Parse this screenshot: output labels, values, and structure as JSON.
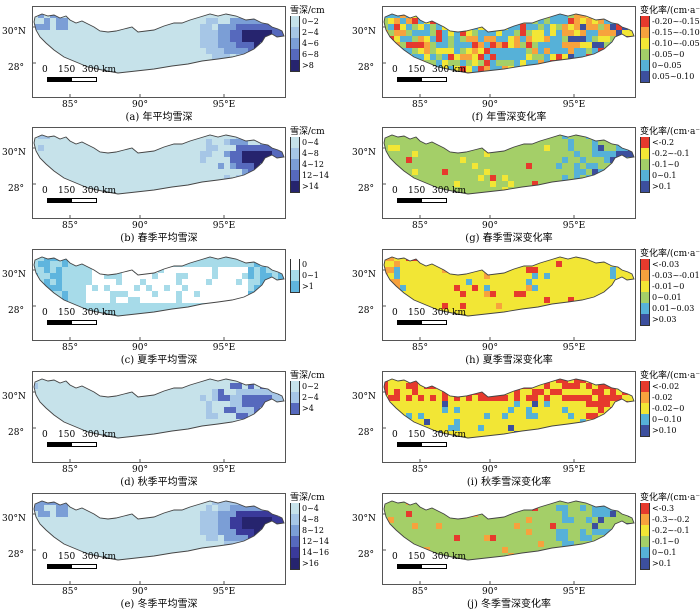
{
  "axes": {
    "lat_labels": [
      "30°N",
      "28°"
    ],
    "lon_labels": [
      "85°",
      "90°",
      "95°E"
    ]
  },
  "scale": {
    "ticks": [
      "0",
      "150",
      "300 km"
    ]
  },
  "colors": {
    "outline": "#444444",
    "depth": [
      "#c6e2ea",
      "#a6c6e6",
      "#7b9ed6",
      "#5669bd",
      "#3a3a9a",
      "#26246e"
    ],
    "summer": [
      "#ffffff",
      "#a7dbe9",
      "#5fb5de"
    ],
    "rate": [
      "#e63a2d",
      "#f7a23d",
      "#f2e635",
      "#a4cf68",
      "#56b1d8",
      "#3c4f9e"
    ]
  },
  "panels": [
    {
      "caption": "(a) 年平均雪深",
      "legend_title": "雪深/cm",
      "legend": [
        "0~2",
        "2~4",
        "4~6",
        "6~8",
        ">8"
      ],
      "colors": [
        "#c6e2ea",
        "#a6c6e6",
        "#7b9ed6",
        "#5669bd",
        "#26246e"
      ],
      "pattern": "depth_east",
      "base": "#c6e2ea"
    },
    {
      "caption": "(f) 年雪深变化率",
      "legend_title": "变化率/(cm·a⁻¹)",
      "legend": [
        "-0.20~-0.15",
        "-0.15~-0.10",
        "-0.10~-0.05",
        "-0.05~0",
        "0~0.05",
        "0.05~0.10"
      ],
      "colors": [
        "#e63a2d",
        "#f7a23d",
        "#f2e635",
        "#a4cf68",
        "#56b1d8",
        "#3c4f9e"
      ],
      "pattern": "rate_mixed",
      "base": "#56b1d8"
    },
    {
      "caption": "(b) 春季平均雪深",
      "legend_title": "雪深/cm",
      "legend": [
        "0~4",
        "4~8",
        "4~12",
        "12~14",
        ">14"
      ],
      "colors": [
        "#c6e2ea",
        "#a6c6e6",
        "#7b9ed6",
        "#5669bd",
        "#26246e"
      ],
      "pattern": "depth_east_light",
      "base": "#c6e2ea"
    },
    {
      "caption": "(g) 春季雪深变化率",
      "legend_title": "变化率/(cm·a⁻¹)",
      "legend": [
        "<-0.2",
        "-0.2~-0.1",
        "-0.1~0",
        "0~0.1",
        ">0.1"
      ],
      "colors": [
        "#e63a2d",
        "#f2e635",
        "#a4cf68",
        "#56b1d8",
        "#3c4f9e"
      ],
      "pattern": "rate_green",
      "base": "#a4cf68"
    },
    {
      "caption": "(c) 夏季平均雪深",
      "legend_title": "",
      "legend": [
        "0",
        "0~1",
        ">1"
      ],
      "colors": [
        "#ffffff",
        "#a7dbe9",
        "#5fb5de"
      ],
      "pattern": "summer",
      "base": "#a7dbe9"
    },
    {
      "caption": "(h) 夏季雪深变化率",
      "legend_title": "变化率/(cm·a⁻¹)",
      "legend": [
        "<-0.03",
        "-0.03~-0.01",
        "-0.01~0",
        "0~0.01",
        "0.01~0.03",
        ">0.03"
      ],
      "colors": [
        "#e63a2d",
        "#f7a23d",
        "#f2e635",
        "#a4cf68",
        "#56b1d8",
        "#3c4f9e"
      ],
      "pattern": "rate_yellow",
      "base": "#f2e635"
    },
    {
      "caption": "(d) 秋季平均雪深",
      "legend_title": "雪深/cm",
      "legend": [
        "0~2",
        "2~4",
        ">4"
      ],
      "colors": [
        "#c6e2ea",
        "#a6c6e6",
        "#5669bd"
      ],
      "pattern": "depth_east_light",
      "base": "#c6e2ea"
    },
    {
      "caption": "(i) 秋季雪深变化率",
      "legend_title": "变化率/(cm·a⁻¹)",
      "legend": [
        "<-0.02",
        "-0.02",
        "-0.02~0",
        "0~0.10",
        ">0.10"
      ],
      "colors": [
        "#e63a2d",
        "#f7a23d",
        "#f2e635",
        "#56b1d8",
        "#3c4f9e"
      ],
      "pattern": "rate_red",
      "base": "#f2e635"
    },
    {
      "caption": "(e) 冬季平均雪深",
      "legend_title": "雪深/cm",
      "legend": [
        "0~4",
        "4~8",
        "8~12",
        "12~14",
        "14~16",
        ">16"
      ],
      "colors": [
        "#c6e2ea",
        "#a6c6e6",
        "#7b9ed6",
        "#5669bd",
        "#3a3a9a",
        "#26246e"
      ],
      "pattern": "depth_east",
      "base": "#c6e2ea"
    },
    {
      "caption": "(j) 冬季雪深变化率",
      "legend_title": "变化率/(cm·a⁻¹)",
      "legend": [
        "<-0.3",
        "-0.3~-0.2",
        "-0.2~-0.1",
        "-0.1~0",
        "0~0.1",
        ">0.1"
      ],
      "colors": [
        "#e63a2d",
        "#f7a23d",
        "#f2e635",
        "#a4cf68",
        "#56b1d8",
        "#3c4f9e"
      ],
      "pattern": "rate_green",
      "base": "#a4cf68"
    }
  ]
}
